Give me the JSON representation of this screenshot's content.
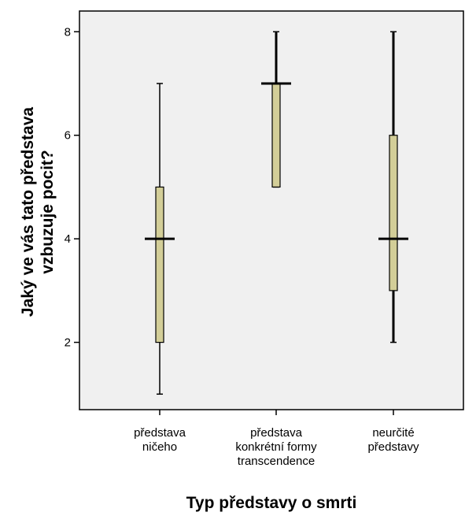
{
  "chart_data": {
    "type": "boxplot",
    "xlabel": "Typ představy o smrti",
    "ylabel_lines": [
      "Jaký ve vás tato představa",
      "vzbuzuje pocit?"
    ],
    "ylim": [
      0.7,
      8.4
    ],
    "yticks": [
      2,
      4,
      6,
      8
    ],
    "categories": [
      {
        "label_lines": [
          "představa",
          "ničeho"
        ],
        "min": 1,
        "q1": 2,
        "median": 4,
        "q3": 5,
        "max": 7
      },
      {
        "label_lines": [
          "představa",
          "konkrétní formy",
          "transcendence"
        ],
        "min": 5,
        "q1": 5,
        "median": 7,
        "q3": 7,
        "max": 8
      },
      {
        "label_lines": [
          "neurčité",
          "představy"
        ],
        "min": 2,
        "q1": 3,
        "median": 4,
        "q3": 6,
        "max": 8
      }
    ],
    "grid": false,
    "colors": {
      "plot_bg": "#f0f0f0",
      "box_fill": "#d3ce98",
      "line": "#000000"
    }
  }
}
